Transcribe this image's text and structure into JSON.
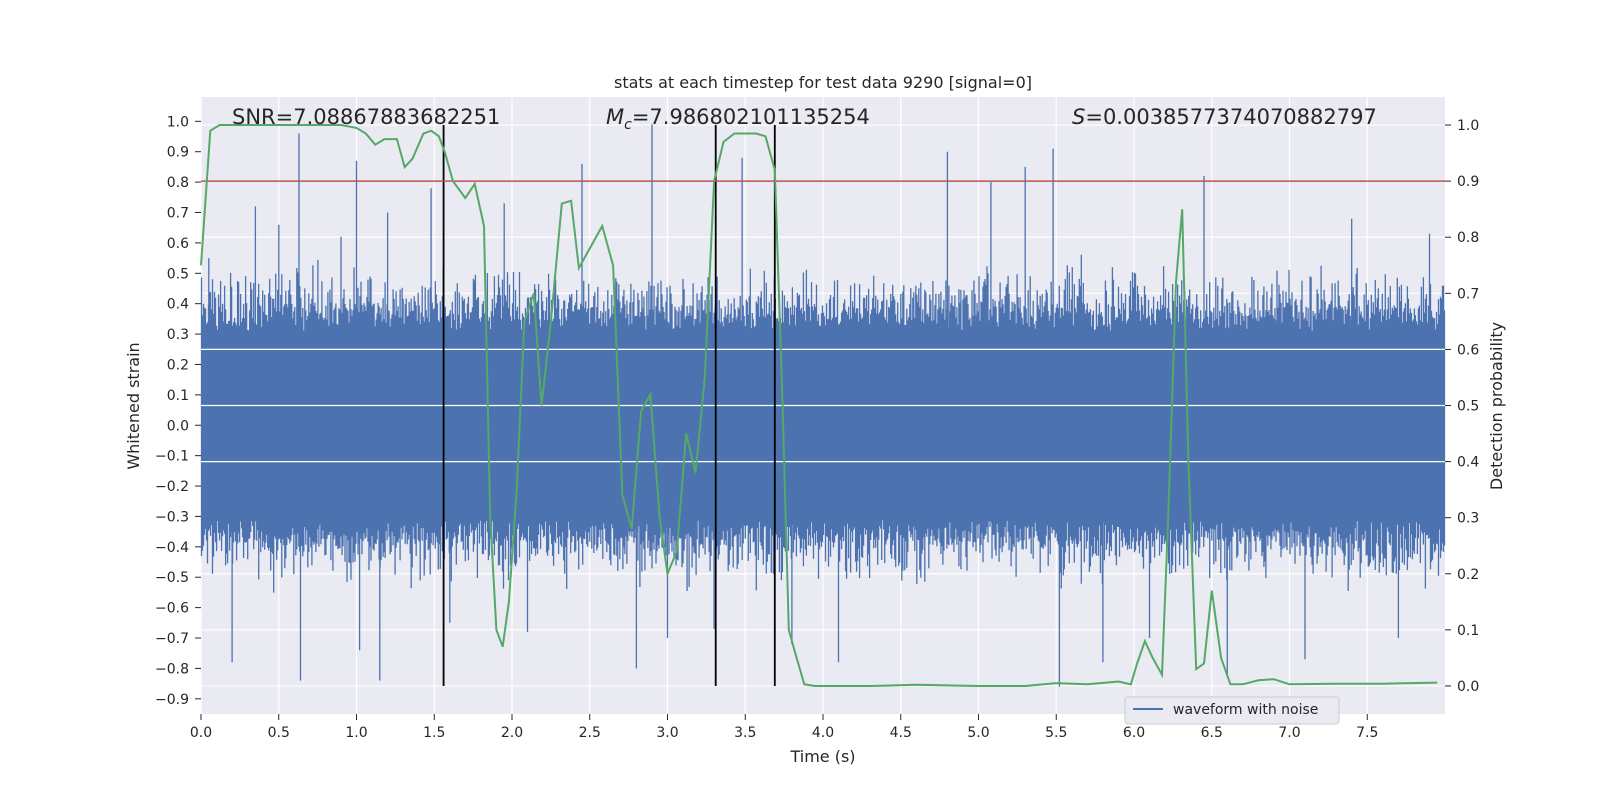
{
  "chart_data": {
    "type": "line",
    "title": "stats at each timestep for test data 9290 [signal=0]",
    "xlabel": "Time (s)",
    "ylabel_left": "Whitened strain",
    "ylabel_right": "Detection probability",
    "xlim": [
      0,
      8.0
    ],
    "ylim_left": [
      -0.95,
      1.08
    ],
    "ylim_right": [
      -0.05,
      1.05
    ],
    "x_ticks": [
      0.0,
      0.5,
      1.0,
      1.5,
      2.0,
      2.5,
      3.0,
      3.5,
      4.0,
      4.5,
      5.0,
      5.5,
      6.0,
      6.5,
      7.0,
      7.5
    ],
    "x_tick_labels": [
      "0.0",
      "0.5",
      "1.0",
      "1.5",
      "2.0",
      "2.5",
      "3.0",
      "3.5",
      "4.0",
      "4.5",
      "5.0",
      "5.5",
      "6.0",
      "6.5",
      "7.0",
      "7.5"
    ],
    "y_left_ticks": [
      -0.9,
      -0.8,
      -0.7,
      -0.6,
      -0.5,
      -0.4,
      -0.3,
      -0.2,
      -0.1,
      0.0,
      0.1,
      0.2,
      0.3,
      0.4,
      0.5,
      0.6,
      0.7,
      0.8,
      0.9,
      1.0
    ],
    "y_left_tick_labels": [
      "−0.9",
      "−0.8",
      "−0.7",
      "−0.6",
      "−0.5",
      "−0.4",
      "−0.3",
      "−0.2",
      "−0.1",
      "0.0",
      "0.1",
      "0.2",
      "0.3",
      "0.4",
      "0.5",
      "0.6",
      "0.7",
      "0.8",
      "0.9",
      "1.0"
    ],
    "y_right_ticks": [
      0.0,
      0.1,
      0.2,
      0.3,
      0.4,
      0.5,
      0.6,
      0.7,
      0.8,
      0.9,
      1.0
    ],
    "y_right_tick_labels": [
      "0.0",
      "0.1",
      "0.2",
      "0.3",
      "0.4",
      "0.5",
      "0.6",
      "0.7",
      "0.8",
      "0.9",
      "1.0"
    ],
    "annotations": {
      "snr": "SNR=7.08867883682251",
      "mc_symbol": "M",
      "mc_subscript": "c",
      "mc_value": "=7.986802101135254",
      "s_symbol": "S",
      "s_value": "=0.0038577374070882797"
    },
    "legend": {
      "label": "waveform with noise",
      "position": "lower-right"
    },
    "threshold": {
      "axis": "right",
      "value": 0.9,
      "color": "#c44e52"
    },
    "vertical_lines": [
      1.56,
      3.31,
      3.69
    ],
    "waveform": {
      "name": "waveform with noise",
      "color": "#4c72b0",
      "duration": 8.0,
      "typical_range": [
        -0.5,
        0.5
      ],
      "peaks": [
        {
          "t": 0.05,
          "v": 0.55
        },
        {
          "t": 0.2,
          "v": -0.78
        },
        {
          "t": 0.35,
          "v": 0.72
        },
        {
          "t": 0.5,
          "v": 0.66
        },
        {
          "t": 0.63,
          "v": 0.96
        },
        {
          "t": 0.64,
          "v": -0.84
        },
        {
          "t": 0.9,
          "v": 0.62
        },
        {
          "t": 1.0,
          "v": 0.87
        },
        {
          "t": 1.02,
          "v": -0.74
        },
        {
          "t": 1.2,
          "v": 0.7
        },
        {
          "t": 1.15,
          "v": -0.84
        },
        {
          "t": 1.48,
          "v": 0.78
        },
        {
          "t": 1.6,
          "v": -0.65
        },
        {
          "t": 1.95,
          "v": 0.73
        },
        {
          "t": 2.1,
          "v": -0.68
        },
        {
          "t": 2.45,
          "v": 0.86
        },
        {
          "t": 2.8,
          "v": -0.8
        },
        {
          "t": 2.9,
          "v": 0.99
        },
        {
          "t": 3.0,
          "v": -0.7
        },
        {
          "t": 3.3,
          "v": -0.67
        },
        {
          "t": 3.48,
          "v": 0.88
        },
        {
          "t": 3.8,
          "v": -0.72
        },
        {
          "t": 4.1,
          "v": -0.78
        },
        {
          "t": 4.8,
          "v": 0.9
        },
        {
          "t": 5.08,
          "v": 0.8
        },
        {
          "t": 5.3,
          "v": 0.85
        },
        {
          "t": 5.48,
          "v": 0.91
        },
        {
          "t": 5.52,
          "v": -0.86
        },
        {
          "t": 5.8,
          "v": -0.78
        },
        {
          "t": 6.1,
          "v": -0.7
        },
        {
          "t": 6.45,
          "v": 0.82
        },
        {
          "t": 6.6,
          "v": -0.82
        },
        {
          "t": 7.1,
          "v": -0.77
        },
        {
          "t": 7.4,
          "v": 0.68
        },
        {
          "t": 7.7,
          "v": -0.7
        },
        {
          "t": 7.9,
          "v": 0.63
        }
      ]
    },
    "detection_probability": {
      "name": "detection probability",
      "color": "#55a868",
      "x": [
        0.0,
        0.06,
        0.12,
        0.2,
        0.3,
        0.45,
        0.6,
        0.75,
        0.9,
        1.0,
        1.06,
        1.12,
        1.18,
        1.26,
        1.31,
        1.36,
        1.43,
        1.48,
        1.53,
        1.57,
        1.62,
        1.7,
        1.76,
        1.82,
        1.86,
        1.9,
        1.94,
        1.98,
        2.03,
        2.08,
        2.14,
        2.19,
        2.25,
        2.32,
        2.38,
        2.43,
        2.5,
        2.58,
        2.65,
        2.71,
        2.77,
        2.83,
        2.89,
        2.95,
        3.0,
        3.06,
        3.12,
        3.18,
        3.24,
        3.3,
        3.36,
        3.43,
        3.5,
        3.57,
        3.63,
        3.69,
        3.74,
        3.78,
        3.82,
        3.88,
        3.95,
        4.05,
        4.3,
        4.6,
        5.0,
        5.3,
        5.5,
        5.7,
        5.9,
        5.98,
        6.02,
        6.07,
        6.12,
        6.18,
        6.22,
        6.27,
        6.31,
        6.35,
        6.4,
        6.45,
        6.5,
        6.56,
        6.62,
        6.7,
        6.8,
        6.9,
        7.0,
        7.3,
        7.6,
        7.95
      ],
      "values": [
        0.75,
        0.99,
        1.0,
        1.0,
        1.0,
        1.0,
        1.0,
        1.0,
        1.0,
        0.995,
        0.985,
        0.965,
        0.975,
        0.975,
        0.925,
        0.94,
        0.985,
        0.99,
        0.98,
        0.95,
        0.9,
        0.87,
        0.895,
        0.82,
        0.3,
        0.1,
        0.07,
        0.15,
        0.35,
        0.65,
        0.7,
        0.5,
        0.65,
        0.86,
        0.865,
        0.745,
        0.78,
        0.82,
        0.75,
        0.34,
        0.28,
        0.49,
        0.52,
        0.3,
        0.2,
        0.24,
        0.45,
        0.38,
        0.55,
        0.9,
        0.97,
        0.985,
        0.985,
        0.985,
        0.98,
        0.92,
        0.5,
        0.1,
        0.06,
        0.003,
        0.0,
        0.0,
        0.0,
        0.002,
        0.0,
        0.0,
        0.005,
        0.003,
        0.008,
        0.003,
        0.04,
        0.08,
        0.05,
        0.02,
        0.3,
        0.72,
        0.85,
        0.4,
        0.03,
        0.04,
        0.17,
        0.05,
        0.003,
        0.003,
        0.01,
        0.012,
        0.003,
        0.004,
        0.004,
        0.006
      ]
    }
  }
}
